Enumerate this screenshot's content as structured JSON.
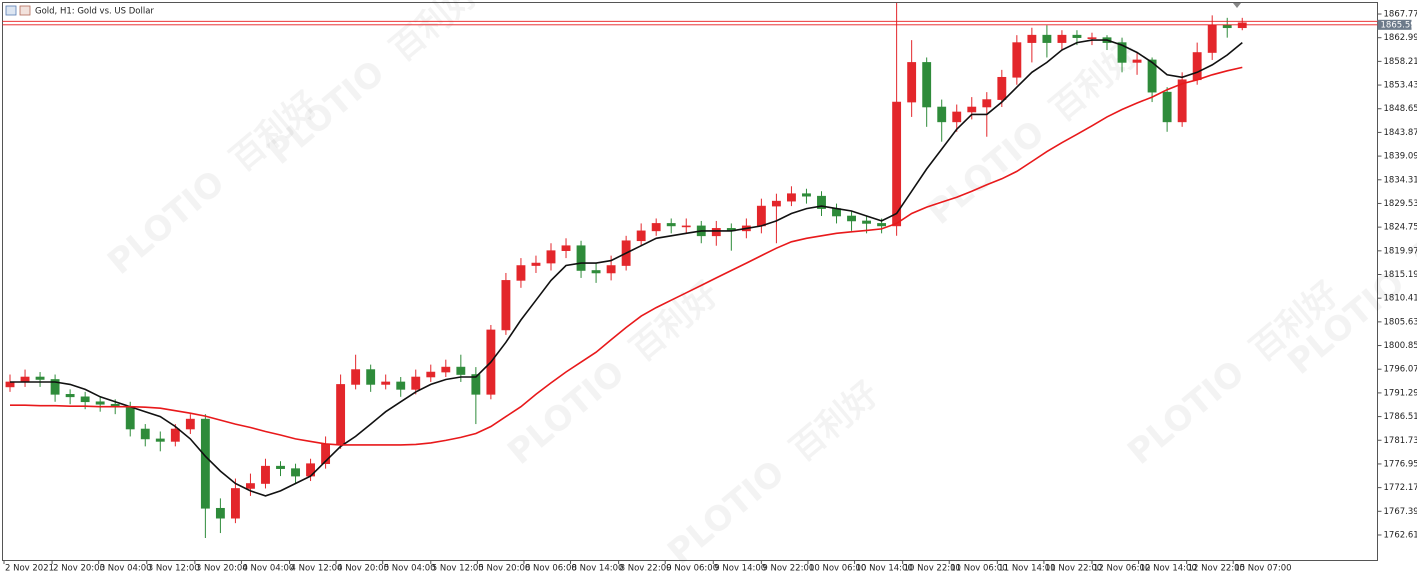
{
  "chart_data": {
    "type": "candlestick",
    "title": "Gold, H1:  Gold vs. US Dollar",
    "watermark": [
      "PLOTIO",
      "百利好"
    ],
    "xlim": [
      0,
      91.5
    ],
    "xticks": [
      {
        "value": 0.1,
        "label": "2 Nov 2021"
      },
      {
        "value": 3.3,
        "label": "2 Nov 20:00"
      },
      {
        "value": 6.4,
        "label": "3 Nov 04:00"
      },
      {
        "value": 9.6,
        "label": "3 Nov 12:00"
      },
      {
        "value": 12.8,
        "label": "3 Nov 20:00"
      },
      {
        "value": 15.9,
        "label": "4 Nov 04:00"
      },
      {
        "value": 19.1,
        "label": "4 Nov 12:00"
      },
      {
        "value": 22.2,
        "label": "4 Nov 20:00"
      },
      {
        "value": 25.3,
        "label": "5 Nov 04:00"
      },
      {
        "value": 28.5,
        "label": "5 Nov 12:00"
      },
      {
        "value": 31.6,
        "label": "5 Nov 20:00"
      },
      {
        "value": 34.7,
        "label": "8 Nov 06:00"
      },
      {
        "value": 37.8,
        "label": "8 Nov 14:00"
      },
      {
        "value": 41.0,
        "label": "8 Nov 22:00"
      },
      {
        "value": 44.1,
        "label": "9 Nov 06:00"
      },
      {
        "value": 47.3,
        "label": "9 Nov 14:00"
      },
      {
        "value": 50.5,
        "label": "9 Nov 22:00"
      },
      {
        "value": 53.6,
        "label": "10 Nov 06:00"
      },
      {
        "value": 56.7,
        "label": "10 Nov 14:00"
      },
      {
        "value": 59.9,
        "label": "10 Nov 22:00"
      },
      {
        "value": 63.0,
        "label": "11 Nov 06:00"
      },
      {
        "value": 66.2,
        "label": "11 Nov 14:00"
      },
      {
        "value": 69.3,
        "label": "11 Nov 22:00"
      },
      {
        "value": 72.5,
        "label": "12 Nov 06:00"
      },
      {
        "value": 75.6,
        "label": "12 Nov 14:00"
      },
      {
        "value": 78.8,
        "label": "12 Nov 22:00"
      },
      {
        "value": 81.9,
        "label": "15 Nov 07:00"
      }
    ],
    "ylim": [
      1757.56,
      1870.6
    ],
    "yticks": [
      1867.77,
      1862.99,
      1858.21,
      1853.43,
      1848.65,
      1843.87,
      1839.09,
      1834.31,
      1829.53,
      1824.75,
      1819.97,
      1815.19,
      1810.41,
      1805.63,
      1800.85,
      1796.07,
      1791.29,
      1786.51,
      1781.73,
      1776.95,
      1772.17,
      1767.39,
      1762.61
    ],
    "up_color": "#e3262b",
    "down_color": "#2e8b3a",
    "open": [
      1792.5,
      1793.5,
      1794.5,
      1794,
      1791,
      1790.5,
      1789.5,
      1789,
      1788.5,
      1784,
      1782,
      1781.5,
      1784,
      1786,
      1768,
      1766,
      1772,
      1773,
      1776.5,
      1776,
      1774.5,
      1777,
      1781,
      1793,
      1796,
      1793,
      1793.5,
      1792,
      1794.5,
      1795.5,
      1796.5,
      1795,
      1791,
      1804,
      1814,
      1817,
      1817.5,
      1820,
      1821,
      1816,
      1815.5,
      1817,
      1822,
      1824,
      1825.5,
      1825,
      1825,
      1823,
      1824.5,
      1824,
      1825,
      1829,
      1830,
      1831.5,
      1831,
      1828.5,
      1827,
      1826,
      1825.5,
      1825,
      1850,
      1858,
      1849,
      1846,
      1848,
      1849,
      1850.5,
      1855,
      1862,
      1863.5,
      1862,
      1863.5,
      1863,
      1863,
      1862,
      1858,
      1858.5,
      1852,
      1846,
      1854.5,
      1860,
      1865.5,
      1865
    ],
    "high": [
      1795,
      1796,
      1795.5,
      1795,
      1792,
      1791.5,
      1790.5,
      1790,
      1789.5,
      1785,
      1783.5,
      1785,
      1787,
      1787,
      1770,
      1774,
      1775,
      1778,
      1777.5,
      1777,
      1778,
      1782.5,
      1795,
      1799,
      1797,
      1795,
      1794.5,
      1796,
      1797,
      1798,
      1799,
      1796.5,
      1805,
      1815.5,
      1818.5,
      1819,
      1821.5,
      1822.5,
      1822,
      1817.5,
      1819,
      1823,
      1825.5,
      1826.5,
      1826.5,
      1826.5,
      1826,
      1826,
      1825.5,
      1826.5,
      1830.5,
      1831.5,
      1833,
      1832.5,
      1832,
      1829.5,
      1828,
      1827,
      1826.5,
      1870,
      1862.5,
      1859,
      1850.5,
      1849.5,
      1851,
      1852,
      1856.5,
      1863.5,
      1865,
      1865.5,
      1864.5,
      1864.5,
      1864,
      1863.5,
      1863,
      1860,
      1859,
      1853,
      1856,
      1862,
      1867.5,
      1867,
      1867
    ],
    "low": [
      1791.5,
      1792.5,
      1792.5,
      1789.5,
      1789,
      1788,
      1787.5,
      1787,
      1782.5,
      1780.5,
      1779.5,
      1780.5,
      1783,
      1762,
      1763,
      1765,
      1770.5,
      1772,
      1774.5,
      1773,
      1773.5,
      1776,
      1780,
      1792,
      1791.5,
      1792,
      1790.5,
      1791,
      1793.5,
      1794.5,
      1793.5,
      1785,
      1790,
      1803,
      1812.5,
      1815.5,
      1816,
      1818.5,
      1814.5,
      1813.5,
      1814,
      1816,
      1821,
      1823,
      1823.5,
      1823.5,
      1821.5,
      1821,
      1820,
      1822.5,
      1823.5,
      1821.5,
      1829,
      1829.5,
      1827,
      1825.5,
      1824,
      1823.5,
      1823.5,
      1823,
      1847,
      1845,
      1842,
      1844,
      1846.5,
      1843,
      1849,
      1853.5,
      1858,
      1859,
      1860.5,
      1861.5,
      1861.5,
      1860.5,
      1856,
      1855.5,
      1850,
      1844,
      1845,
      1853.5,
      1858.5,
      1863,
      1864.5
    ],
    "close": [
      1793.5,
      1794.5,
      1794,
      1791,
      1790.5,
      1789.5,
      1789,
      1788.5,
      1784,
      1782,
      1781.5,
      1784,
      1786,
      1768,
      1766,
      1772,
      1773,
      1776.5,
      1776,
      1774.5,
      1777,
      1781,
      1793,
      1796,
      1793,
      1793.5,
      1792,
      1794.5,
      1795.5,
      1796.5,
      1795,
      1791,
      1804,
      1814,
      1817,
      1817.5,
      1820,
      1821,
      1816,
      1815.5,
      1817,
      1822,
      1824,
      1825.5,
      1825,
      1825,
      1823,
      1824.5,
      1824,
      1825,
      1829,
      1830,
      1831.5,
      1831,
      1828.5,
      1827,
      1826,
      1825.5,
      1825,
      1850,
      1858,
      1849,
      1846,
      1848,
      1849,
      1850.5,
      1855,
      1862,
      1863.5,
      1862,
      1863.5,
      1863,
      1863,
      1862,
      1858,
      1858.5,
      1852,
      1846,
      1854.5,
      1860,
      1865.5,
      1865,
      1866
    ],
    "lines": [
      {
        "color": "#111111",
        "values": [
          1793.5,
          1793.5,
          1793.5,
          1793.5,
          1793,
          1792,
          1790.5,
          1789.5,
          1788.5,
          1787.5,
          1786.5,
          1784.5,
          1782,
          1778.5,
          1775.5,
          1773,
          1771.5,
          1770.5,
          1771.5,
          1773,
          1774.5,
          1777.5,
          1780.5,
          1782.5,
          1785,
          1787.5,
          1789.5,
          1791.5,
          1793,
          1794,
          1794.5,
          1794.5,
          1797.5,
          1801.5,
          1806,
          1810,
          1814,
          1817,
          1817.5,
          1817.5,
          1818,
          1819.5,
          1821,
          1822.5,
          1823,
          1823.5,
          1824,
          1824,
          1824,
          1824.5,
          1825,
          1826,
          1827.5,
          1828.5,
          1829,
          1828.5,
          1828,
          1827,
          1826,
          1827.5,
          1832,
          1836.5,
          1840.5,
          1844.5,
          1847.5,
          1847.5,
          1850,
          1853,
          1856,
          1858,
          1860.5,
          1862,
          1862.5,
          1862.5,
          1861.5,
          1860,
          1858,
          1855.5,
          1855,
          1856,
          1857.5,
          1859.5,
          1862
        ]
      },
      {
        "color": "#e8191b",
        "values": [
          1788.8,
          1788.8,
          1788.7,
          1788.7,
          1788.6,
          1788.6,
          1788.5,
          1788.5,
          1788.5,
          1788.4,
          1788.2,
          1787.7,
          1787.2,
          1786.6,
          1785.8,
          1785,
          1784.3,
          1783.5,
          1782.8,
          1782,
          1781.5,
          1781,
          1780.8,
          1780.8,
          1780.8,
          1780.8,
          1780.8,
          1780.9,
          1781.2,
          1781.7,
          1782.3,
          1783.1,
          1784.5,
          1786.5,
          1788.5,
          1791,
          1793.3,
          1795.5,
          1797.5,
          1799.5,
          1802,
          1804.5,
          1806.8,
          1808.5,
          1810,
          1811.5,
          1813,
          1814.5,
          1816,
          1817.5,
          1819,
          1820.5,
          1821.8,
          1822.5,
          1823,
          1823.5,
          1823.8,
          1824.1,
          1824.4,
          1825.5,
          1827.5,
          1828.8,
          1829.8,
          1830.8,
          1832,
          1833.3,
          1834.5,
          1836,
          1838,
          1840,
          1841.8,
          1843.5,
          1845.2,
          1847,
          1848.5,
          1849.8,
          1851,
          1852.5,
          1853.7,
          1854.5,
          1855.5,
          1856.3,
          1857
        ]
      }
    ],
    "price_lines": {
      "color": "#e8191b",
      "ask": 1866.3,
      "bid": 1865.59
    }
  }
}
